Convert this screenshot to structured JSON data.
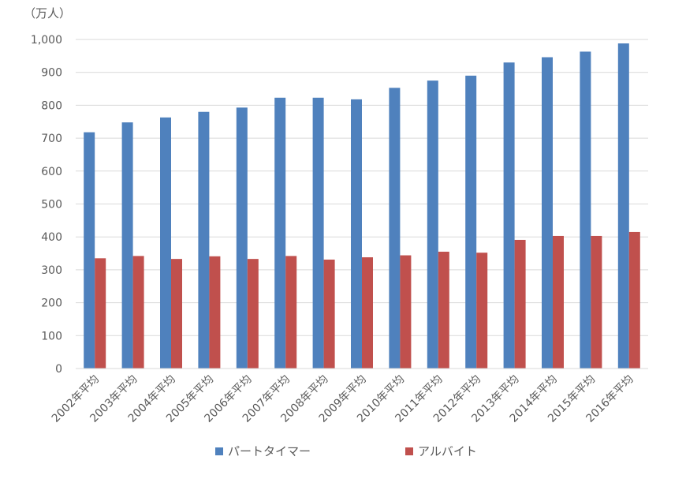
{
  "chart_data": {
    "type": "bar",
    "ylabel": "（万人）",
    "ylim": [
      0,
      1000
    ],
    "yticks": [
      0,
      100,
      200,
      300,
      400,
      500,
      600,
      700,
      800,
      900,
      1000
    ],
    "ytick_labels": [
      "0",
      "100",
      "200",
      "300",
      "400",
      "500",
      "600",
      "700",
      "800",
      "900",
      "1,000"
    ],
    "grid": true,
    "legend_position": "bottom",
    "categories": [
      "2002年平均",
      "2003年平均",
      "2004年平均",
      "2005年平均",
      "2006年平均",
      "2007年平均",
      "2008年平均",
      "2009年平均",
      "2010年平均",
      "2011年平均",
      "2012年平均",
      "2013年平均",
      "2014年平均",
      "2015年平均",
      "2016年平均"
    ],
    "series": [
      {
        "name": "パートタイマー",
        "color": "#4f81bd",
        "values": [
          718,
          748,
          763,
          780,
          793,
          823,
          823,
          818,
          853,
          875,
          890,
          930,
          946,
          963,
          988
        ]
      },
      {
        "name": "アルバイト",
        "color": "#c0504d",
        "values": [
          335,
          342,
          333,
          341,
          333,
          342,
          331,
          338,
          344,
          355,
          352,
          391,
          403,
          403,
          415
        ]
      }
    ]
  }
}
